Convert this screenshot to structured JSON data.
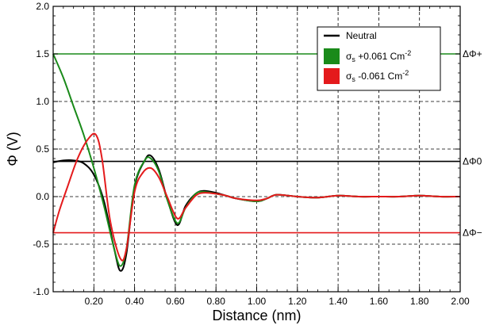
{
  "chart_data": {
    "type": "line",
    "xlabel": "Distance (nm)",
    "ylabel": "Φ (V)",
    "xlim": [
      0.0,
      2.0
    ],
    "ylim": [
      -1.0,
      2.0
    ],
    "x_ticks": [
      "0.20",
      "0.40",
      "0.60",
      "0.80",
      "1.00",
      "1.20",
      "1.40",
      "1.60",
      "1.80",
      "2.00"
    ],
    "y_ticks": [
      "2.0",
      "1.5",
      "1.0",
      "0.5",
      "0.0",
      "-0.5",
      "-1.0"
    ],
    "grid": true,
    "legend_position": "top-right",
    "colors": {
      "neutral": "#000000",
      "positive": "#1a8a1a",
      "negative": "#e41a1c"
    },
    "series": [
      {
        "name": "Neutral",
        "color_key": "neutral",
        "x": [
          0.0,
          0.05,
          0.1,
          0.15,
          0.2,
          0.25,
          0.3,
          0.33,
          0.36,
          0.4,
          0.45,
          0.48,
          0.52,
          0.56,
          0.61,
          0.65,
          0.7,
          0.74,
          0.8,
          0.85,
          0.9,
          1.0,
          1.05,
          1.1,
          1.2,
          1.3,
          1.4,
          1.5,
          1.6,
          1.7,
          1.8,
          1.9,
          2.0
        ],
        "y": [
          0.36,
          0.38,
          0.38,
          0.35,
          0.23,
          -0.05,
          -0.55,
          -0.78,
          -0.6,
          0.1,
          0.38,
          0.43,
          0.28,
          -0.02,
          -0.3,
          -0.1,
          0.03,
          0.06,
          0.04,
          0.01,
          -0.02,
          -0.05,
          -0.02,
          0.02,
          0.0,
          -0.01,
          0.01,
          0.0,
          0.0,
          0.0,
          0.01,
          0.0,
          0.0
        ]
      },
      {
        "name": "σs +0.061 Cm-2",
        "color_key": "positive",
        "x": [
          0.0,
          0.05,
          0.1,
          0.15,
          0.2,
          0.25,
          0.3,
          0.33,
          0.36,
          0.4,
          0.45,
          0.48,
          0.52,
          0.56,
          0.61,
          0.65,
          0.7,
          0.74,
          0.8,
          0.85,
          0.9,
          1.0,
          1.05,
          1.1,
          1.2,
          1.3,
          1.4,
          1.5,
          1.6,
          1.7,
          1.8,
          1.9,
          2.0
        ],
        "y": [
          1.5,
          1.25,
          0.95,
          0.65,
          0.3,
          -0.1,
          -0.55,
          -0.73,
          -0.55,
          0.12,
          0.38,
          0.4,
          0.26,
          -0.03,
          -0.28,
          -0.12,
          0.03,
          0.05,
          0.03,
          0.01,
          -0.02,
          -0.05,
          -0.02,
          0.02,
          0.0,
          -0.01,
          0.01,
          0.0,
          0.0,
          0.0,
          0.01,
          0.0,
          0.0
        ]
      },
      {
        "name": "σs -0.061 Cm-2",
        "color_key": "negative",
        "x": [
          0.0,
          0.03,
          0.07,
          0.12,
          0.17,
          0.21,
          0.24,
          0.28,
          0.33,
          0.36,
          0.4,
          0.44,
          0.48,
          0.52,
          0.56,
          0.61,
          0.65,
          0.7,
          0.74,
          0.8,
          0.85,
          0.9,
          1.0,
          1.05,
          1.1,
          1.2,
          1.3,
          1.4,
          1.5,
          1.6,
          1.7,
          1.8,
          1.9,
          2.0
        ],
        "y": [
          -0.38,
          -0.15,
          0.1,
          0.4,
          0.6,
          0.65,
          0.4,
          -0.25,
          -0.65,
          -0.55,
          0.05,
          0.25,
          0.3,
          0.2,
          0.0,
          -0.23,
          -0.12,
          0.01,
          0.04,
          0.03,
          0.01,
          -0.02,
          -0.04,
          -0.02,
          0.02,
          0.0,
          -0.01,
          0.01,
          0.0,
          0.0,
          0.0,
          0.01,
          0.0,
          0.0
        ]
      }
    ],
    "reference_lines": [
      {
        "y": 1.5,
        "color_key": "positive",
        "label": "ΔΦ+"
      },
      {
        "y": 0.37,
        "color_key": "neutral",
        "label": "ΔΦ0"
      },
      {
        "y": -0.38,
        "color_key": "negative",
        "label": "ΔΦ−"
      }
    ],
    "legend": [
      {
        "label": "Neutral",
        "color_key": "neutral",
        "marker": "line"
      },
      {
        "label_base": "σ",
        "label_sub": "s",
        "label_rest": " +0.061 Cm",
        "label_sup": "-2",
        "color_key": "positive",
        "marker": "box"
      },
      {
        "label_base": "σ",
        "label_sub": "s",
        "label_rest": " -0.061 Cm",
        "label_sup": "-2",
        "color_key": "negative",
        "marker": "box"
      }
    ]
  }
}
